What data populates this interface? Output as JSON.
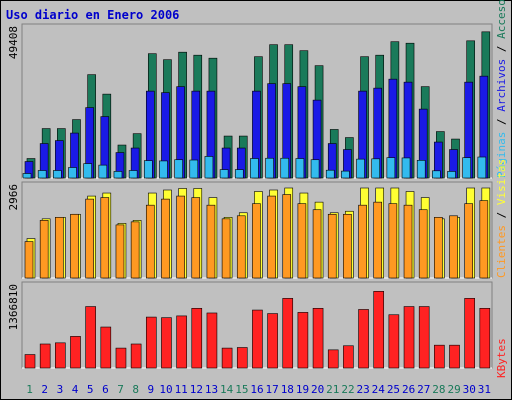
{
  "title": "Uso diario en Enero 2006",
  "colors": {
    "background": "#c0c0c0",
    "plot_bg": "#c0c0c0",
    "title": "#0000cc",
    "accesos": "#1a7a5a",
    "archivos": "#1a1ae6",
    "paginas": "#33bbee",
    "visitas": "#ffff33",
    "clientes": "#ff9922",
    "kbytes": "#ff2222",
    "weekend_day": "#1a7a5a",
    "weekday": "#0000cc"
  },
  "chart_data": [
    {
      "type": "bar",
      "name": "accesos-archivos-paginas",
      "ymax_label": "49408",
      "ymax": 49408,
      "categories": [
        "1",
        "2",
        "3",
        "4",
        "5",
        "6",
        "7",
        "8",
        "9",
        "10",
        "11",
        "12",
        "13",
        "14",
        "15",
        "16",
        "17",
        "18",
        "19",
        "20",
        "21",
        "22",
        "23",
        "24",
        "25",
        "26",
        "27",
        "28",
        "29",
        "30",
        "31"
      ],
      "series": [
        {
          "name": "Accesos",
          "color": "#1a7a5a",
          "values": [
            6500,
            16500,
            16500,
            19500,
            34500,
            28000,
            11000,
            14800,
            41500,
            39500,
            42000,
            41000,
            40000,
            14000,
            14000,
            40500,
            44500,
            44500,
            42500,
            37500,
            16200,
            13500,
            40500,
            41000,
            45500,
            45000,
            30500,
            15500,
            13000,
            45800,
            48800
          ]
        },
        {
          "name": "Archivos",
          "color": "#1a1a e6",
          "values": [
            5500,
            11500,
            12500,
            15000,
            23500,
            20500,
            8500,
            10000,
            29000,
            28500,
            30500,
            29000,
            29000,
            10000,
            10000,
            29000,
            31500,
            31500,
            30500,
            26000,
            11500,
            9500,
            29000,
            30000,
            33000,
            32000,
            23000,
            12000,
            9500,
            32000,
            34000
          ]
        },
        {
          "name": "Paginas",
          "color": "#33bbee",
          "values": [
            1500,
            2500,
            2500,
            3500,
            4800,
            4300,
            2200,
            2500,
            5800,
            5700,
            6100,
            6000,
            7200,
            2800,
            2800,
            6500,
            6600,
            6600,
            6500,
            6100,
            2600,
            2300,
            6300,
            6400,
            6800,
            6700,
            5900,
            2400,
            2200,
            6800,
            7000
          ]
        }
      ]
    },
    {
      "type": "bar",
      "name": "visitas-clientes",
      "ymax_label": "2966",
      "ymax": 2966,
      "categories": [
        "1",
        "2",
        "3",
        "4",
        "5",
        "6",
        "7",
        "8",
        "9",
        "10",
        "11",
        "12",
        "13",
        "14",
        "15",
        "16",
        "17",
        "18",
        "19",
        "20",
        "21",
        "22",
        "23",
        "24",
        "25",
        "26",
        "27",
        "28",
        "29",
        "30",
        "31"
      ],
      "series": [
        {
          "name": "Visitas",
          "color": "#ffff33",
          "values": [
            1300,
            1950,
            2000,
            2100,
            2700,
            2800,
            1800,
            1900,
            2800,
            2900,
            2950,
            2950,
            2650,
            2000,
            2150,
            2850,
            2900,
            2966,
            2800,
            2500,
            2150,
            2200,
            2966,
            2966,
            2966,
            2850,
            2650,
            1950,
            2000,
            2966,
            2966
          ]
        },
        {
          "name": "Clientes",
          "color": "#ff9922",
          "values": [
            1200,
            1900,
            2000,
            2100,
            2600,
            2650,
            1750,
            1850,
            2400,
            2600,
            2700,
            2650,
            2400,
            1950,
            2050,
            2450,
            2700,
            2750,
            2450,
            2250,
            2100,
            2100,
            2400,
            2500,
            2450,
            2400,
            2250,
            2000,
            2050,
            2450,
            2550
          ]
        }
      ]
    },
    {
      "type": "bar",
      "name": "kbytes",
      "ymax_label": "1366810",
      "ymax": 1366810,
      "categories": [
        "1",
        "2",
        "3",
        "4",
        "5",
        "6",
        "7",
        "8",
        "9",
        "10",
        "11",
        "12",
        "13",
        "14",
        "15",
        "16",
        "17",
        "18",
        "19",
        "20",
        "21",
        "22",
        "23",
        "24",
        "25",
        "26",
        "27",
        "28",
        "29",
        "30",
        "31"
      ],
      "series": [
        {
          "name": "KBytes",
          "color": "#ff2222",
          "values": [
            230000,
            410000,
            430000,
            540000,
            1050000,
            700000,
            340000,
            410000,
            870000,
            860000,
            890000,
            1020000,
            940000,
            340000,
            350000,
            990000,
            930000,
            1190000,
            950000,
            1020000,
            310000,
            380000,
            1000000,
            1310000,
            910000,
            1050000,
            1050000,
            390000,
            390000,
            1190000,
            1020000
          ]
        }
      ]
    }
  ],
  "legend_top": {
    "accesos": "Accesos",
    "slash1": " / ",
    "archivos": "Archivos",
    "slash2": " / ",
    "paginas": "Páginas"
  },
  "legend_mid": {
    "visitas": "Visitas",
    "slash": " / ",
    "clientes": "Clientes"
  },
  "legend_bot": {
    "kbytes": "KBytes"
  },
  "weekend_days": [
    "1",
    "7",
    "8",
    "14",
    "15",
    "21",
    "22",
    "28",
    "29"
  ]
}
